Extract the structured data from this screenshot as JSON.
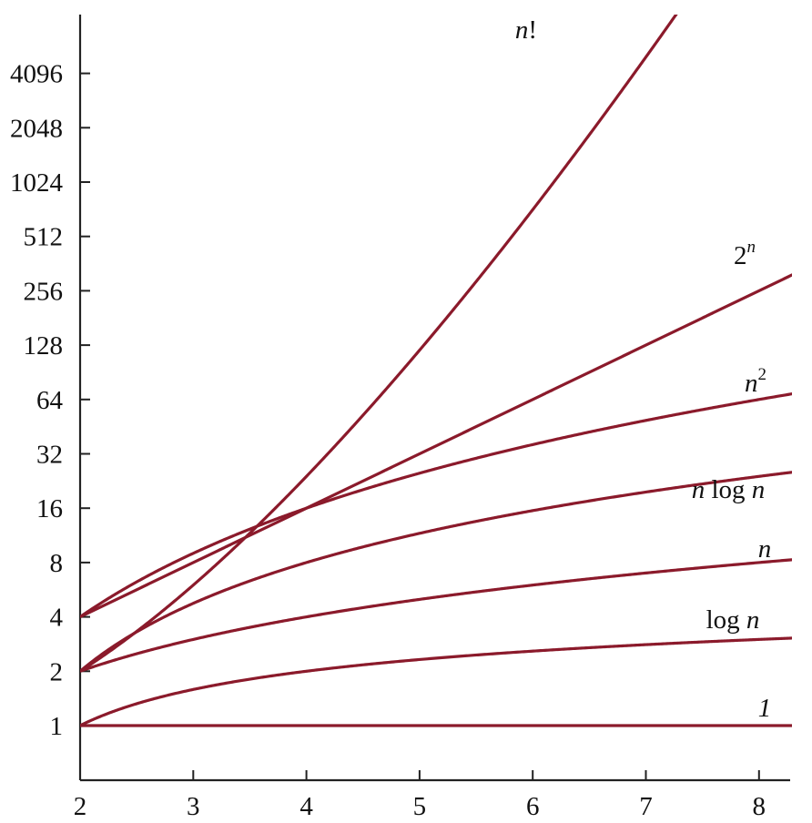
{
  "chart_data": {
    "type": "line",
    "xlim": [
      2,
      8.3
    ],
    "ylim_log2": [
      -1,
      13
    ],
    "y_scale": "log2",
    "x_ticks": [
      "2",
      "3",
      "4",
      "5",
      "6",
      "7",
      "8"
    ],
    "y_ticks": [
      "1",
      "2",
      "4",
      "8",
      "16",
      "32",
      "64",
      "128",
      "256",
      "512",
      "1024",
      "2048",
      "4096"
    ],
    "line_color": "#8b1a2b",
    "grid": false,
    "series": [
      {
        "name": "1",
        "label": {
          "pre": "",
          "base": "1",
          "post": "",
          "sup": ""
        }
      },
      {
        "name": "log n",
        "label": {
          "pre": "log ",
          "base": "n",
          "post": "",
          "sup": ""
        }
      },
      {
        "name": "n",
        "label": {
          "pre": "",
          "base": "n",
          "post": "",
          "sup": ""
        }
      },
      {
        "name": "n log n",
        "label": {
          "pre": "",
          "base": "n",
          "post": " log n",
          "sup": ""
        }
      },
      {
        "name": "n^2",
        "label": {
          "pre": "",
          "base": "n",
          "post": "",
          "sup": "2"
        }
      },
      {
        "name": "2^n",
        "label": {
          "pre": "2",
          "base": "",
          "post": "",
          "sup": "n"
        }
      },
      {
        "name": "n!",
        "label": {
          "pre": "",
          "base": "n",
          "post": "!",
          "sup": ""
        }
      }
    ]
  }
}
